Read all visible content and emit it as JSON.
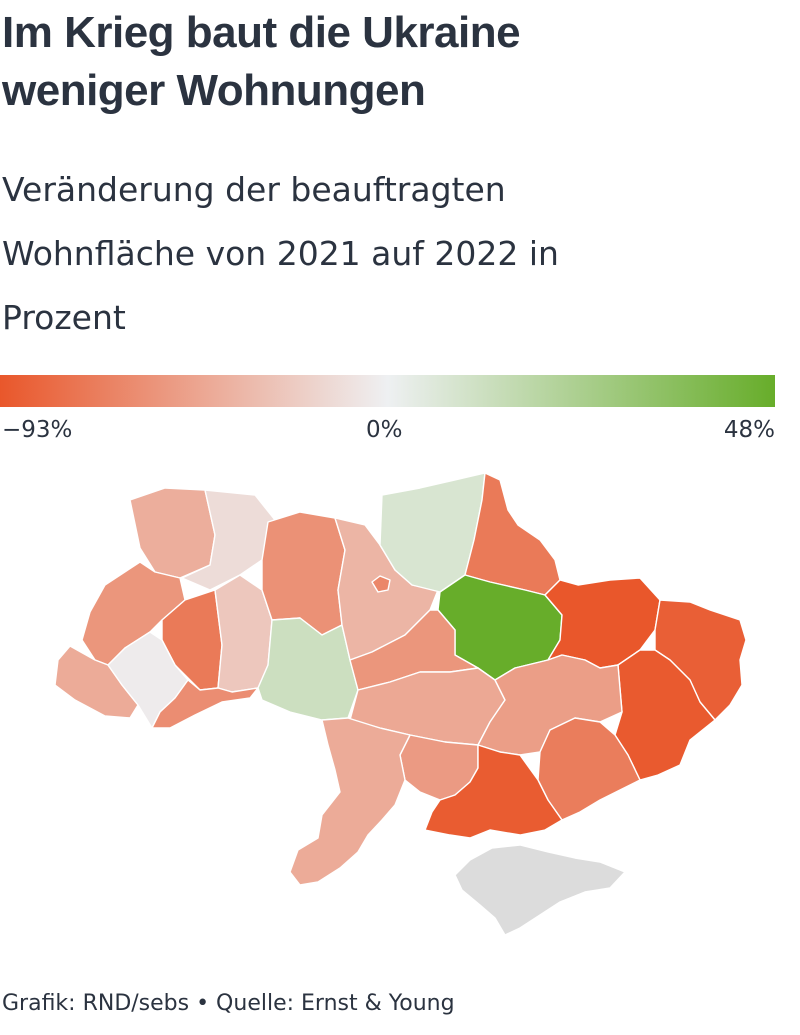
{
  "header": {
    "title_line1": "Im Krieg baut die Ukraine",
    "title_line2": "weniger Wohnungen",
    "subtitle_line1": "Veränderung der beauftragten",
    "subtitle_line2": "Wohnfläche von 2021 auf 2022 in",
    "subtitle_line3": "Prozent"
  },
  "legend": {
    "min_label": "−93%",
    "mid_label": "0%",
    "max_label": "48%",
    "min_value": -93,
    "mid_value": 0,
    "max_value": 48,
    "color_min": "#e9572b",
    "color_mid": "#eef0f2",
    "color_max": "#67ad2a"
  },
  "map": {
    "no_data_color": "#dcdcdc",
    "regions": [
      {
        "id": "volyn",
        "value": -40
      },
      {
        "id": "rivne",
        "value": -12
      },
      {
        "id": "lviv",
        "value": -55
      },
      {
        "id": "ternopil",
        "value": -72
      },
      {
        "id": "khmelnytskyi",
        "value": -25
      },
      {
        "id": "zakarpattia",
        "value": -42
      },
      {
        "id": "ivano-frankivsk",
        "value": -3
      },
      {
        "id": "chernivtsi",
        "value": -60
      },
      {
        "id": "zhytomyr",
        "value": -58
      },
      {
        "id": "vinnytsia",
        "value": 12
      },
      {
        "id": "kyiv-oblast",
        "value": -36
      },
      {
        "id": "kyiv-city",
        "value": -64
      },
      {
        "id": "chernihiv",
        "value": 8
      },
      {
        "id": "sumy",
        "value": -72
      },
      {
        "id": "poltava",
        "value": 48
      },
      {
        "id": "cherkasy",
        "value": -55
      },
      {
        "id": "kirovohrad",
        "value": -44
      },
      {
        "id": "kharkiv",
        "value": -93
      },
      {
        "id": "luhansk",
        "value": -88
      },
      {
        "id": "donetsk",
        "value": -91
      },
      {
        "id": "dnipropetrovsk",
        "value": -50
      },
      {
        "id": "zaporizhzhia",
        "value": -70
      },
      {
        "id": "mykolaiv",
        "value": -52
      },
      {
        "id": "kherson",
        "value": -90
      },
      {
        "id": "odesa",
        "value": -42
      },
      {
        "id": "crimea",
        "value": null
      }
    ]
  },
  "footer": {
    "credit": "Grafik: RND/sebs • Quelle: Ernst & Young"
  }
}
